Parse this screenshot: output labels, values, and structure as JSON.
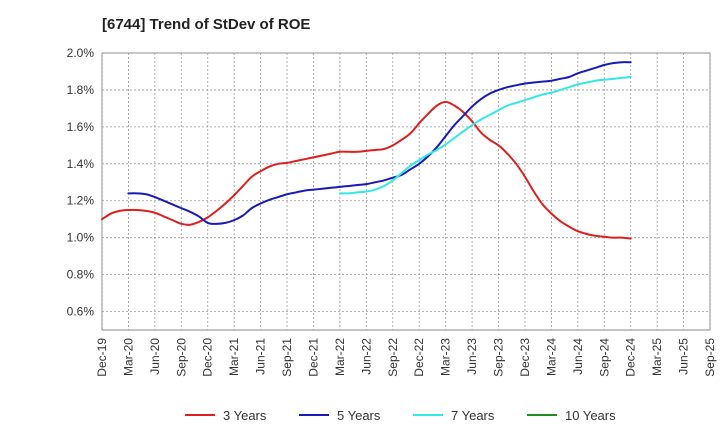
{
  "chart_data": {
    "type": "line",
    "title": "[6744]  Trend of StDev of ROE",
    "xlabel": "",
    "ylabel": "",
    "x_ticks": [
      "Dec-19",
      "Mar-20",
      "Jun-20",
      "Sep-20",
      "Dec-20",
      "Mar-21",
      "Jun-21",
      "Sep-21",
      "Dec-21",
      "Mar-22",
      "Jun-22",
      "Sep-22",
      "Dec-22",
      "Mar-23",
      "Jun-23",
      "Sep-23",
      "Dec-23",
      "Mar-24",
      "Jun-24",
      "Sep-24",
      "Dec-24",
      "Mar-25",
      "Jun-25",
      "Sep-25"
    ],
    "y_ticks": [
      "0.6%",
      "0.8%",
      "1.0%",
      "1.2%",
      "1.4%",
      "1.6%",
      "1.8%",
      "2.0%"
    ],
    "ylim": [
      0.5,
      2.0
    ],
    "y_unit": "%",
    "grid": true,
    "legend_position": "bottom",
    "series": [
      {
        "name": "3 Years",
        "color": "#dd1f1f",
        "x": [
          "2019-12",
          "2020-01",
          "2020-02",
          "2020-03",
          "2020-04",
          "2020-05",
          "2020-06",
          "2020-07",
          "2020-08",
          "2020-09",
          "2020-10",
          "2020-11",
          "2020-12",
          "2021-01",
          "2021-02",
          "2021-03",
          "2021-04",
          "2021-05",
          "2021-06",
          "2021-07",
          "2021-08",
          "2021-09",
          "2021-10",
          "2021-11",
          "2021-12",
          "2022-01",
          "2022-02",
          "2022-03",
          "2022-04",
          "2022-05",
          "2022-06",
          "2022-07",
          "2022-08",
          "2022-09",
          "2022-10",
          "2022-11",
          "2022-12",
          "2023-01",
          "2023-02",
          "2023-03",
          "2023-04",
          "2023-05",
          "2023-06",
          "2023-07",
          "2023-08",
          "2023-09",
          "2023-10",
          "2023-11",
          "2023-12",
          "2024-01",
          "2024-02",
          "2024-03",
          "2024-04",
          "2024-05",
          "2024-06",
          "2024-07",
          "2024-08",
          "2024-09",
          "2024-10",
          "2024-11",
          "2024-12"
        ],
        "y": [
          1.1,
          1.13,
          1.145,
          1.15,
          1.15,
          1.145,
          1.135,
          1.115,
          1.095,
          1.075,
          1.07,
          1.085,
          1.11,
          1.145,
          1.185,
          1.23,
          1.28,
          1.33,
          1.36,
          1.385,
          1.4,
          1.405,
          1.415,
          1.425,
          1.435,
          1.445,
          1.455,
          1.465,
          1.465,
          1.465,
          1.47,
          1.475,
          1.48,
          1.5,
          1.53,
          1.565,
          1.62,
          1.67,
          1.715,
          1.735,
          1.715,
          1.68,
          1.63,
          1.57,
          1.53,
          1.5,
          1.455,
          1.4,
          1.33,
          1.25,
          1.18,
          1.13,
          1.09,
          1.06,
          1.035,
          1.02,
          1.01,
          1.005,
          1.0,
          1.0,
          0.995
        ]
      },
      {
        "name": "5 Years",
        "color": "#1a1ab8",
        "x": [
          "2020-03",
          "2020-04",
          "2020-05",
          "2020-06",
          "2020-07",
          "2020-08",
          "2020-09",
          "2020-10",
          "2020-11",
          "2020-12",
          "2021-01",
          "2021-02",
          "2021-03",
          "2021-04",
          "2021-05",
          "2021-06",
          "2021-07",
          "2021-08",
          "2021-09",
          "2021-10",
          "2021-11",
          "2021-12",
          "2022-01",
          "2022-02",
          "2022-03",
          "2022-04",
          "2022-05",
          "2022-06",
          "2022-07",
          "2022-08",
          "2022-09",
          "2022-10",
          "2022-11",
          "2022-12",
          "2023-01",
          "2023-02",
          "2023-03",
          "2023-04",
          "2023-05",
          "2023-06",
          "2023-07",
          "2023-08",
          "2023-09",
          "2023-10",
          "2023-11",
          "2023-12",
          "2024-01",
          "2024-02",
          "2024-03",
          "2024-04",
          "2024-05",
          "2024-06",
          "2024-07",
          "2024-08",
          "2024-09",
          "2024-10",
          "2024-11",
          "2024-12"
        ],
        "y": [
          1.24,
          1.24,
          1.235,
          1.22,
          1.2,
          1.18,
          1.16,
          1.14,
          1.115,
          1.08,
          1.075,
          1.08,
          1.095,
          1.12,
          1.16,
          1.185,
          1.205,
          1.22,
          1.235,
          1.245,
          1.255,
          1.26,
          1.265,
          1.27,
          1.275,
          1.28,
          1.285,
          1.29,
          1.3,
          1.31,
          1.325,
          1.34,
          1.37,
          1.4,
          1.44,
          1.49,
          1.55,
          1.61,
          1.66,
          1.71,
          1.75,
          1.78,
          1.8,
          1.815,
          1.825,
          1.835,
          1.84,
          1.845,
          1.85,
          1.86,
          1.87,
          1.89,
          1.905,
          1.92,
          1.935,
          1.945,
          1.95,
          1.95
        ]
      },
      {
        "name": "7 Years",
        "color": "#33e8e8",
        "x": [
          "2022-03",
          "2022-04",
          "2022-05",
          "2022-06",
          "2022-07",
          "2022-08",
          "2022-09",
          "2022-10",
          "2022-11",
          "2022-12",
          "2023-01",
          "2023-02",
          "2023-03",
          "2023-04",
          "2023-05",
          "2023-06",
          "2023-07",
          "2023-08",
          "2023-09",
          "2023-10",
          "2023-11",
          "2023-12",
          "2024-01",
          "2024-02",
          "2024-03",
          "2024-04",
          "2024-05",
          "2024-06",
          "2024-07",
          "2024-08",
          "2024-09",
          "2024-10",
          "2024-11",
          "2024-12"
        ],
        "y": [
          1.24,
          1.24,
          1.245,
          1.25,
          1.26,
          1.28,
          1.31,
          1.35,
          1.39,
          1.42,
          1.45,
          1.475,
          1.505,
          1.54,
          1.575,
          1.61,
          1.64,
          1.665,
          1.69,
          1.715,
          1.73,
          1.745,
          1.76,
          1.775,
          1.785,
          1.8,
          1.815,
          1.83,
          1.84,
          1.85,
          1.855,
          1.86,
          1.865,
          1.87
        ]
      },
      {
        "name": "10 Years",
        "color": "#1f8c1f",
        "x": [],
        "y": []
      }
    ]
  }
}
